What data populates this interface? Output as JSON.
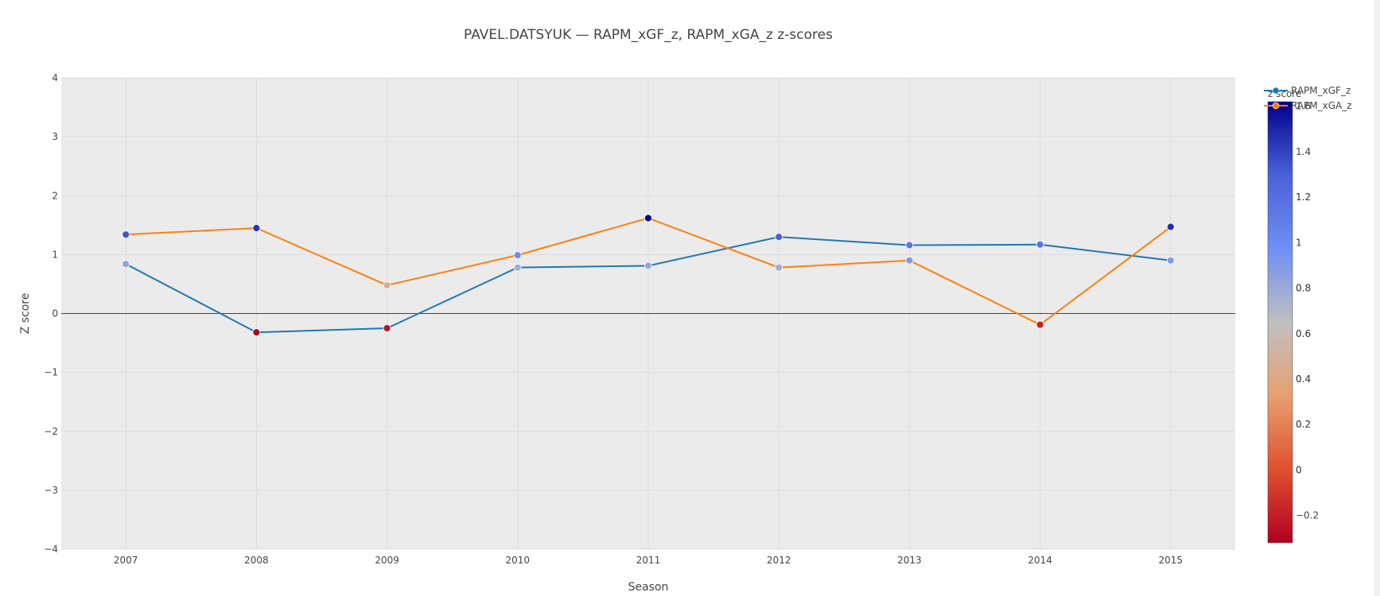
{
  "chart_data": {
    "type": "line",
    "title": "PAVEL.DATSYUK — RAPM_xGF_z, RAPM_xGA_z z-scores",
    "xlabel": "Season",
    "ylabel": "Z score",
    "x": [
      "2007",
      "2008",
      "2009",
      "2010",
      "2011",
      "2012",
      "2013",
      "2014",
      "2015"
    ],
    "ylim": [
      -4,
      4
    ],
    "y_ticks": [
      "4",
      "3",
      "2",
      "1",
      "0",
      "−1",
      "−2",
      "−3",
      "−4"
    ],
    "y_tick_values": [
      4,
      3,
      2,
      1,
      0,
      -1,
      -2,
      -3,
      -4
    ],
    "grid": true,
    "series": [
      {
        "name": "RAPM_xGF_z",
        "color": "#1f77b4",
        "values": [
          0.84,
          -0.32,
          -0.25,
          0.78,
          0.81,
          1.3,
          1.16,
          1.17,
          0.9
        ],
        "marker_values": [
          0.84,
          -0.32,
          -0.25,
          0.78,
          0.81,
          1.3,
          1.16,
          1.17,
          0.9
        ]
      },
      {
        "name": "RAPM_xGA_z",
        "color": "#ff7f0e",
        "values": [
          1.34,
          1.45,
          0.48,
          0.99,
          1.62,
          0.78,
          0.9,
          -0.19,
          1.47
        ],
        "marker_values": [
          1.34,
          1.45,
          0.48,
          0.99,
          1.62,
          0.78,
          0.9,
          -0.19,
          1.47
        ]
      }
    ],
    "legend": {
      "position": "top-right",
      "entries": [
        "RAPM_xGF_z",
        "RAPM_xGA_z"
      ]
    },
    "colorbar": {
      "title": "z score",
      "colors_top_to_bottom": [
        "#00008b",
        "#4a61d8",
        "#6f8ff4",
        "#c0c0c0",
        "#e7a070",
        "#e05030",
        "#b00020"
      ],
      "range": [
        -0.32,
        1.62
      ],
      "tick_sets": [
        {
          "labels": [
            "1.6",
            "1.4",
            "1.2",
            "1",
            "0.8",
            "0.6",
            "0.4",
            "0.2",
            "0"
          ],
          "values": [
            1.6,
            1.4,
            1.2,
            1.0,
            0.8,
            0.6,
            0.4,
            0.2,
            0.0
          ]
        },
        {
          "labels": [
            "1.2",
            "1",
            "0.8",
            "0.6",
            "0.4",
            "0.2",
            "0",
            "−0.2"
          ],
          "values": [
            1.2,
            1.0,
            0.8,
            0.6,
            0.4,
            0.2,
            0.0,
            -0.2
          ]
        }
      ]
    },
    "colors": {
      "plot_bg": "#ebebeb",
      "grid": "#dcdcdc",
      "zero_line": "#444444",
      "text": "#444444"
    }
  }
}
